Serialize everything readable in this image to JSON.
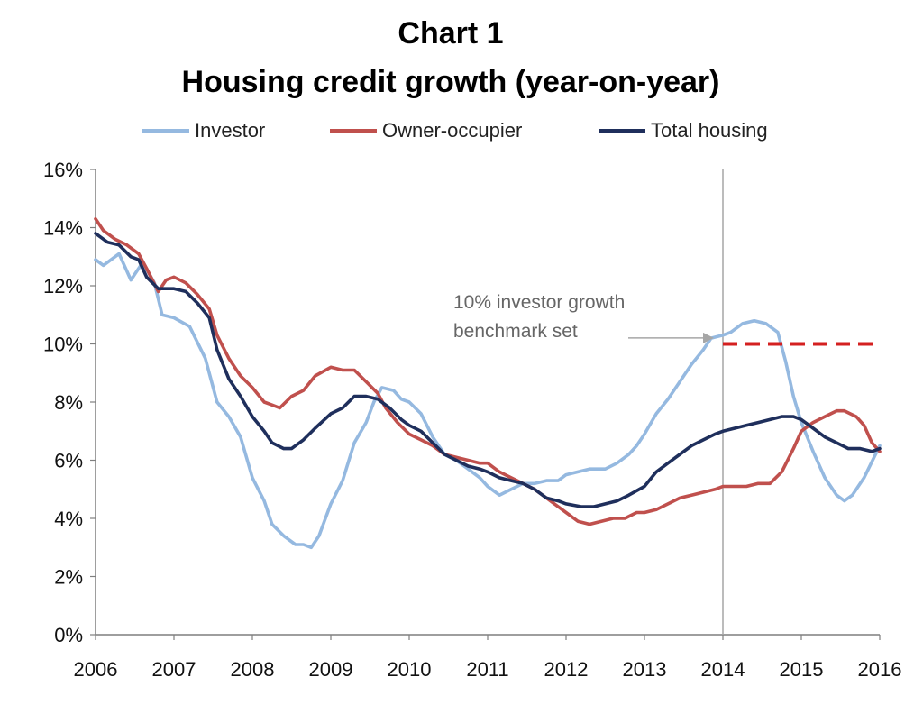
{
  "chart_data": {
    "type": "line",
    "title": "Chart 1",
    "subtitle": "Housing credit growth (year-on-year)",
    "xlabel": "",
    "ylabel": "",
    "x_tick_labels": [
      "2006",
      "2007",
      "2008",
      "2009",
      "2010",
      "2011",
      "2012",
      "2013",
      "2014",
      "2015",
      "2016"
    ],
    "y_tick_labels": [
      "0%",
      "2%",
      "4%",
      "6%",
      "8%",
      "10%",
      "12%",
      "14%",
      "16%"
    ],
    "xlim": [
      2006,
      2016
    ],
    "ylim": [
      0,
      16
    ],
    "grid": false,
    "legend_position": "top",
    "series": [
      {
        "name": "Investor",
        "color": "#95b9e0",
        "points": [
          [
            2006.0,
            12.9
          ],
          [
            2006.1,
            12.7
          ],
          [
            2006.3,
            13.1
          ],
          [
            2006.45,
            12.2
          ],
          [
            2006.6,
            12.8
          ],
          [
            2006.75,
            12.1
          ],
          [
            2006.85,
            11.0
          ],
          [
            2007.0,
            10.9
          ],
          [
            2007.2,
            10.6
          ],
          [
            2007.4,
            9.5
          ],
          [
            2007.55,
            8.0
          ],
          [
            2007.7,
            7.5
          ],
          [
            2007.85,
            6.8
          ],
          [
            2008.0,
            5.4
          ],
          [
            2008.15,
            4.6
          ],
          [
            2008.25,
            3.8
          ],
          [
            2008.4,
            3.4
          ],
          [
            2008.55,
            3.1
          ],
          [
            2008.65,
            3.1
          ],
          [
            2008.75,
            3.0
          ],
          [
            2008.85,
            3.4
          ],
          [
            2009.0,
            4.5
          ],
          [
            2009.15,
            5.3
          ],
          [
            2009.3,
            6.6
          ],
          [
            2009.45,
            7.3
          ],
          [
            2009.55,
            8.0
          ],
          [
            2009.65,
            8.5
          ],
          [
            2009.8,
            8.4
          ],
          [
            2009.9,
            8.1
          ],
          [
            2010.0,
            8.0
          ],
          [
            2010.15,
            7.6
          ],
          [
            2010.3,
            6.8
          ],
          [
            2010.45,
            6.2
          ],
          [
            2010.6,
            6.0
          ],
          [
            2010.75,
            5.7
          ],
          [
            2010.9,
            5.4
          ],
          [
            2011.0,
            5.1
          ],
          [
            2011.15,
            4.8
          ],
          [
            2011.3,
            5.0
          ],
          [
            2011.45,
            5.2
          ],
          [
            2011.6,
            5.2
          ],
          [
            2011.75,
            5.3
          ],
          [
            2011.9,
            5.3
          ],
          [
            2012.0,
            5.5
          ],
          [
            2012.15,
            5.6
          ],
          [
            2012.3,
            5.7
          ],
          [
            2012.5,
            5.7
          ],
          [
            2012.65,
            5.9
          ],
          [
            2012.8,
            6.2
          ],
          [
            2012.9,
            6.5
          ],
          [
            2013.0,
            6.9
          ],
          [
            2013.15,
            7.6
          ],
          [
            2013.3,
            8.1
          ],
          [
            2013.45,
            8.7
          ],
          [
            2013.6,
            9.3
          ],
          [
            2013.75,
            9.8
          ],
          [
            2013.85,
            10.2
          ],
          [
            2014.0,
            10.3
          ],
          [
            2014.1,
            10.4
          ],
          [
            2014.25,
            10.7
          ],
          [
            2014.4,
            10.8
          ],
          [
            2014.55,
            10.7
          ],
          [
            2014.7,
            10.4
          ],
          [
            2014.8,
            9.4
          ],
          [
            2014.9,
            8.2
          ],
          [
            2015.0,
            7.3
          ],
          [
            2015.15,
            6.3
          ],
          [
            2015.3,
            5.4
          ],
          [
            2015.45,
            4.8
          ],
          [
            2015.55,
            4.6
          ],
          [
            2015.65,
            4.8
          ],
          [
            2015.8,
            5.4
          ],
          [
            2016.0,
            6.5
          ]
        ]
      },
      {
        "name": "Owner-occupier",
        "color": "#c0504d",
        "points": [
          [
            2006.0,
            14.3
          ],
          [
            2006.1,
            13.9
          ],
          [
            2006.25,
            13.6
          ],
          [
            2006.4,
            13.4
          ],
          [
            2006.55,
            13.1
          ],
          [
            2006.65,
            12.6
          ],
          [
            2006.8,
            11.8
          ],
          [
            2006.9,
            12.2
          ],
          [
            2007.0,
            12.3
          ],
          [
            2007.15,
            12.1
          ],
          [
            2007.3,
            11.7
          ],
          [
            2007.45,
            11.2
          ],
          [
            2007.55,
            10.3
          ],
          [
            2007.7,
            9.5
          ],
          [
            2007.85,
            8.9
          ],
          [
            2008.0,
            8.5
          ],
          [
            2008.15,
            8.0
          ],
          [
            2008.25,
            7.9
          ],
          [
            2008.35,
            7.8
          ],
          [
            2008.5,
            8.2
          ],
          [
            2008.65,
            8.4
          ],
          [
            2008.8,
            8.9
          ],
          [
            2009.0,
            9.2
          ],
          [
            2009.15,
            9.1
          ],
          [
            2009.3,
            9.1
          ],
          [
            2009.45,
            8.7
          ],
          [
            2009.6,
            8.3
          ],
          [
            2009.7,
            7.8
          ],
          [
            2009.85,
            7.3
          ],
          [
            2010.0,
            6.9
          ],
          [
            2010.15,
            6.7
          ],
          [
            2010.3,
            6.5
          ],
          [
            2010.45,
            6.2
          ],
          [
            2010.6,
            6.1
          ],
          [
            2010.75,
            6.0
          ],
          [
            2010.9,
            5.9
          ],
          [
            2011.0,
            5.9
          ],
          [
            2011.15,
            5.6
          ],
          [
            2011.3,
            5.4
          ],
          [
            2011.45,
            5.2
          ],
          [
            2011.6,
            5.0
          ],
          [
            2011.75,
            4.7
          ],
          [
            2011.9,
            4.4
          ],
          [
            2012.0,
            4.2
          ],
          [
            2012.15,
            3.9
          ],
          [
            2012.3,
            3.8
          ],
          [
            2012.45,
            3.9
          ],
          [
            2012.6,
            4.0
          ],
          [
            2012.75,
            4.0
          ],
          [
            2012.9,
            4.2
          ],
          [
            2013.0,
            4.2
          ],
          [
            2013.15,
            4.3
          ],
          [
            2013.3,
            4.5
          ],
          [
            2013.45,
            4.7
          ],
          [
            2013.6,
            4.8
          ],
          [
            2013.75,
            4.9
          ],
          [
            2013.9,
            5.0
          ],
          [
            2014.0,
            5.1
          ],
          [
            2014.15,
            5.1
          ],
          [
            2014.3,
            5.1
          ],
          [
            2014.45,
            5.2
          ],
          [
            2014.6,
            5.2
          ],
          [
            2014.75,
            5.6
          ],
          [
            2014.9,
            6.4
          ],
          [
            2015.0,
            7.0
          ],
          [
            2015.15,
            7.3
          ],
          [
            2015.3,
            7.5
          ],
          [
            2015.45,
            7.7
          ],
          [
            2015.55,
            7.7
          ],
          [
            2015.7,
            7.5
          ],
          [
            2015.8,
            7.2
          ],
          [
            2015.9,
            6.6
          ],
          [
            2016.0,
            6.3
          ]
        ]
      },
      {
        "name": "Total housing",
        "color": "#1f2f5c",
        "points": [
          [
            2006.0,
            13.8
          ],
          [
            2006.15,
            13.5
          ],
          [
            2006.3,
            13.4
          ],
          [
            2006.45,
            13.0
          ],
          [
            2006.55,
            12.9
          ],
          [
            2006.65,
            12.3
          ],
          [
            2006.8,
            11.9
          ],
          [
            2007.0,
            11.9
          ],
          [
            2007.15,
            11.8
          ],
          [
            2007.3,
            11.4
          ],
          [
            2007.45,
            10.9
          ],
          [
            2007.55,
            9.8
          ],
          [
            2007.7,
            8.8
          ],
          [
            2007.85,
            8.2
          ],
          [
            2008.0,
            7.5
          ],
          [
            2008.15,
            7.0
          ],
          [
            2008.25,
            6.6
          ],
          [
            2008.4,
            6.4
          ],
          [
            2008.5,
            6.4
          ],
          [
            2008.65,
            6.7
          ],
          [
            2008.8,
            7.1
          ],
          [
            2009.0,
            7.6
          ],
          [
            2009.15,
            7.8
          ],
          [
            2009.3,
            8.2
          ],
          [
            2009.45,
            8.2
          ],
          [
            2009.6,
            8.1
          ],
          [
            2009.75,
            7.8
          ],
          [
            2009.9,
            7.4
          ],
          [
            2010.0,
            7.2
          ],
          [
            2010.15,
            7.0
          ],
          [
            2010.3,
            6.6
          ],
          [
            2010.45,
            6.2
          ],
          [
            2010.6,
            6.0
          ],
          [
            2010.75,
            5.8
          ],
          [
            2010.9,
            5.7
          ],
          [
            2011.0,
            5.6
          ],
          [
            2011.15,
            5.4
          ],
          [
            2011.3,
            5.3
          ],
          [
            2011.45,
            5.2
          ],
          [
            2011.6,
            5.0
          ],
          [
            2011.75,
            4.7
          ],
          [
            2011.9,
            4.6
          ],
          [
            2012.0,
            4.5
          ],
          [
            2012.2,
            4.4
          ],
          [
            2012.35,
            4.4
          ],
          [
            2012.5,
            4.5
          ],
          [
            2012.65,
            4.6
          ],
          [
            2012.8,
            4.8
          ],
          [
            2013.0,
            5.1
          ],
          [
            2013.15,
            5.6
          ],
          [
            2013.3,
            5.9
          ],
          [
            2013.45,
            6.2
          ],
          [
            2013.6,
            6.5
          ],
          [
            2013.75,
            6.7
          ],
          [
            2013.9,
            6.9
          ],
          [
            2014.0,
            7.0
          ],
          [
            2014.15,
            7.1
          ],
          [
            2014.3,
            7.2
          ],
          [
            2014.45,
            7.3
          ],
          [
            2014.6,
            7.4
          ],
          [
            2014.75,
            7.5
          ],
          [
            2014.9,
            7.5
          ],
          [
            2015.0,
            7.4
          ],
          [
            2015.15,
            7.1
          ],
          [
            2015.3,
            6.8
          ],
          [
            2015.45,
            6.6
          ],
          [
            2015.6,
            6.4
          ],
          [
            2015.75,
            6.4
          ],
          [
            2015.9,
            6.3
          ],
          [
            2016.0,
            6.4
          ]
        ]
      }
    ],
    "benchmark": {
      "name": "10% investor growth benchmark",
      "value": 10,
      "x_start": 2014,
      "x_end": 2016,
      "color": "#d42020",
      "style": "dashed"
    },
    "vertical_marker": {
      "x": 2014,
      "color": "#a6a6a6"
    },
    "annotation": {
      "line1": "10% investor growth",
      "line2": "benchmark set",
      "arrow_to_x": 2014,
      "arrow_to_y": 10.3
    }
  }
}
